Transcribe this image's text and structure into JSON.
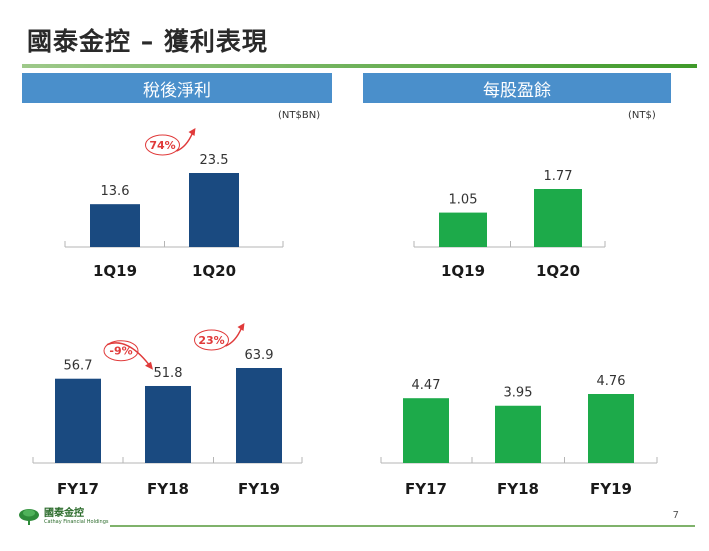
{
  "title": "國泰金控 – 獲利表現",
  "colors": {
    "navy": "#1a4a80",
    "green": "#1daa4a",
    "header_blue": "#4a8fcb",
    "arrow_red": "#e03a3a"
  },
  "left_panel": {
    "header": "稅後淨利",
    "unit": "(NT$BN)"
  },
  "right_panel": {
    "header": "每股盈餘",
    "unit": "(NT$)"
  },
  "chart_data": [
    {
      "id": "ni_quarterly",
      "type": "bar",
      "title": "稅後淨利",
      "unit": "(NT$BN)",
      "categories": [
        "1Q19",
        "1Q20"
      ],
      "values": [
        13.6,
        23.5
      ],
      "labels": [
        "13.6",
        "23.5"
      ],
      "color": "#1a4a80",
      "annotations": [
        {
          "text": "74%",
          "direction": "up",
          "between": [
            0,
            1
          ]
        }
      ]
    },
    {
      "id": "ni_annual",
      "type": "bar",
      "title": "稅後淨利",
      "unit": "(NT$BN)",
      "categories": [
        "FY17",
        "FY18",
        "FY19"
      ],
      "values": [
        56.7,
        51.8,
        63.9
      ],
      "labels": [
        "56.7",
        "51.8",
        "63.9"
      ],
      "color": "#1a4a80",
      "annotations": [
        {
          "text": "-9%",
          "direction": "down",
          "between": [
            0,
            1
          ]
        },
        {
          "text": "23%",
          "direction": "up",
          "between": [
            1,
            2
          ]
        }
      ]
    },
    {
      "id": "eps_quarterly",
      "type": "bar",
      "title": "每股盈餘",
      "unit": "(NT$)",
      "categories": [
        "1Q19",
        "1Q20"
      ],
      "values": [
        1.05,
        1.77
      ],
      "labels": [
        "1.05",
        "1.77"
      ],
      "color": "#1daa4a",
      "annotations": []
    },
    {
      "id": "eps_annual",
      "type": "bar",
      "title": "每股盈餘",
      "unit": "(NT$)",
      "categories": [
        "FY17",
        "FY18",
        "FY19"
      ],
      "values": [
        4.47,
        3.95,
        4.76
      ],
      "labels": [
        "4.47",
        "3.95",
        "4.76"
      ],
      "color": "#1daa4a",
      "annotations": []
    }
  ],
  "footer": {
    "logo_cn": "國泰金控",
    "logo_en": "Cathay Financial Holdings",
    "page_number": "7"
  }
}
